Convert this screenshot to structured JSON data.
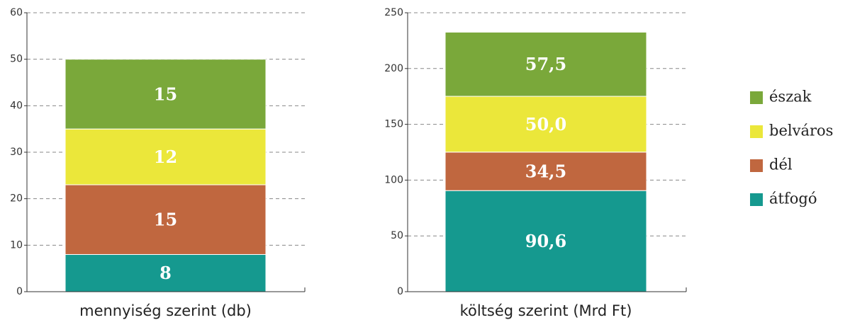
{
  "chart_data": [
    {
      "type": "bar",
      "stacked": true,
      "categories": [
        "mennyiség szerint (db)"
      ],
      "ylim": [
        0,
        60
      ],
      "yticks": [
        0,
        10,
        20,
        30,
        40,
        50,
        60
      ],
      "grid": true,
      "series": [
        {
          "color": "#15998f",
          "values": [
            8
          ]
        },
        {
          "color": "#c0673f",
          "values": [
            15
          ]
        },
        {
          "color": "#ebe73a",
          "values": [
            12
          ]
        },
        {
          "color": "#7aa83a",
          "values": [
            15
          ]
        }
      ]
    },
    {
      "type": "bar",
      "stacked": true,
      "categories": [
        "költség szerint (Mrd Ft)"
      ],
      "ylim": [
        0,
        250
      ],
      "yticks": [
        0,
        50,
        100,
        150,
        200,
        250
      ],
      "grid": true,
      "legend": "right",
      "series": [
        {
          "name": "átfogó",
          "color": "#15998f",
          "values": [
            90.6
          ],
          "value_labels": [
            "90,6"
          ]
        },
        {
          "name": "dél",
          "color": "#c0673f",
          "values": [
            34.5
          ],
          "value_labels": [
            "34,5"
          ]
        },
        {
          "name": "belváros",
          "color": "#ebe73a",
          "values": [
            50.0
          ],
          "value_labels": [
            "50,0"
          ]
        },
        {
          "name": "észak",
          "color": "#7aa83a",
          "values": [
            57.5
          ],
          "value_labels": [
            "57,5"
          ]
        }
      ]
    }
  ]
}
